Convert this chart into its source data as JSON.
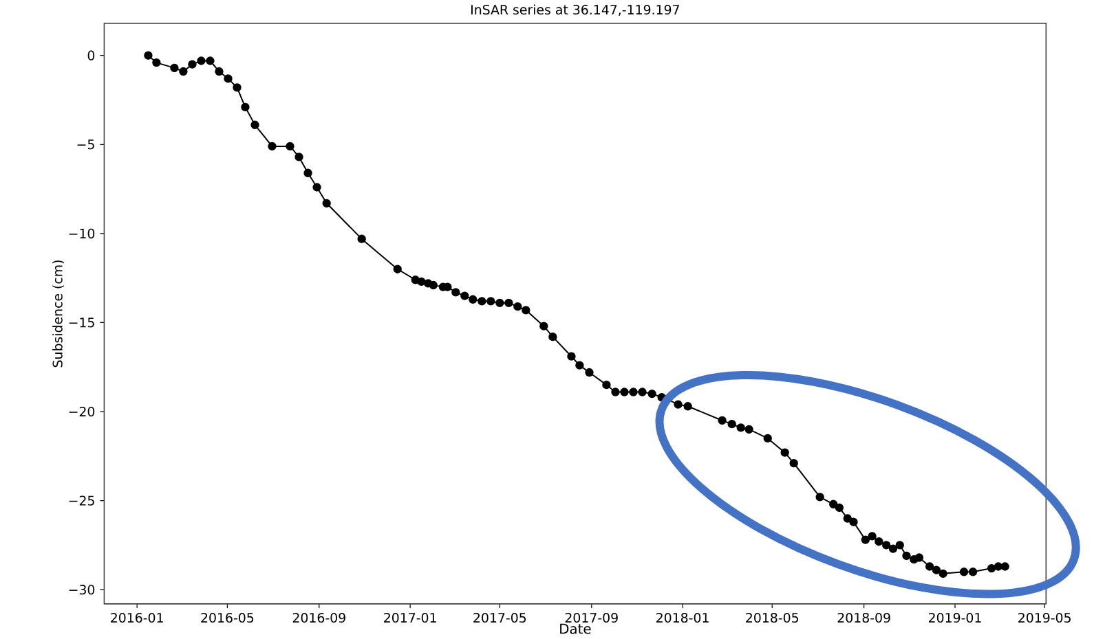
{
  "chart_data": {
    "type": "line",
    "title": "InSAR series at 36.147,-119.197",
    "xlabel": "Date",
    "ylabel": "Subsidence (cm)",
    "marker": "circle",
    "line_style": "solid",
    "grid": false,
    "xlim": [
      "2015-11-18",
      "2019-05-03"
    ],
    "xticks": [
      {
        "value": "2016-01-01",
        "label": "2016-01"
      },
      {
        "value": "2016-05-01",
        "label": "2016-05"
      },
      {
        "value": "2016-09-01",
        "label": "2016-09"
      },
      {
        "value": "2017-01-01",
        "label": "2017-01"
      },
      {
        "value": "2017-05-01",
        "label": "2017-05"
      },
      {
        "value": "2017-09-01",
        "label": "2017-09"
      },
      {
        "value": "2018-01-01",
        "label": "2018-01"
      },
      {
        "value": "2018-05-01",
        "label": "2018-05"
      },
      {
        "value": "2018-09-01",
        "label": "2018-09"
      },
      {
        "value": "2019-01-01",
        "label": "2019-01"
      },
      {
        "value": "2019-05-01",
        "label": "2019-05"
      }
    ],
    "ylim": [
      -30.8,
      1.8
    ],
    "yticks": [
      {
        "value": 0,
        "label": "0"
      },
      {
        "value": -5,
        "label": "−5"
      },
      {
        "value": -10,
        "label": "−10"
      },
      {
        "value": -15,
        "label": "−15"
      },
      {
        "value": -20,
        "label": "−20"
      },
      {
        "value": -25,
        "label": "−25"
      },
      {
        "value": -30,
        "label": "−30"
      }
    ],
    "series": [
      {
        "color": "#000000",
        "x": [
          "2016-01-16",
          "2016-01-27",
          "2016-02-20",
          "2016-03-03",
          "2016-03-15",
          "2016-03-27",
          "2016-04-08",
          "2016-04-20",
          "2016-05-02",
          "2016-05-14",
          "2016-05-25",
          "2016-06-07",
          "2016-06-30",
          "2016-07-24",
          "2016-08-05",
          "2016-08-17",
          "2016-08-29",
          "2016-09-11",
          "2016-10-28",
          "2016-12-15",
          "2017-01-08",
          "2017-01-16",
          "2017-01-25",
          "2017-02-01",
          "2017-02-14",
          "2017-02-20",
          "2017-03-03",
          "2017-03-15",
          "2017-03-26",
          "2017-04-07",
          "2017-04-19",
          "2017-05-01",
          "2017-05-13",
          "2017-05-25",
          "2017-06-05",
          "2017-06-29",
          "2017-07-11",
          "2017-08-05",
          "2017-08-16",
          "2017-08-29",
          "2017-09-21",
          "2017-10-03",
          "2017-10-15",
          "2017-10-27",
          "2017-11-08",
          "2017-11-21",
          "2017-12-04",
          "2017-12-11",
          "2017-12-26",
          "2018-01-08",
          "2018-02-23",
          "2018-03-08",
          "2018-03-20",
          "2018-03-31",
          "2018-04-25",
          "2018-05-18",
          "2018-05-30",
          "2018-07-04",
          "2018-07-22",
          "2018-07-30",
          "2018-08-10",
          "2018-08-18",
          "2018-09-03",
          "2018-09-12",
          "2018-09-21",
          "2018-10-01",
          "2018-10-10",
          "2018-10-19",
          "2018-10-28",
          "2018-11-07",
          "2018-11-14",
          "2018-11-28",
          "2018-12-07",
          "2018-12-16",
          "2019-01-13",
          "2019-01-25",
          "2019-02-19",
          "2019-02-28",
          "2019-03-09"
        ],
        "values": [
          0.0,
          -0.4,
          -0.7,
          -0.9,
          -0.5,
          -0.3,
          -0.3,
          -0.9,
          -1.3,
          -1.8,
          -2.9,
          -3.9,
          -5.1,
          -5.1,
          -5.7,
          -6.6,
          -7.4,
          -8.3,
          -10.3,
          -12.0,
          -12.6,
          -12.7,
          -12.8,
          -12.9,
          -13.0,
          -13.0,
          -13.3,
          -13.5,
          -13.7,
          -13.8,
          -13.8,
          -13.9,
          -13.9,
          -14.1,
          -14.3,
          -15.2,
          -15.8,
          -16.9,
          -17.4,
          -17.8,
          -18.5,
          -18.9,
          -18.9,
          -18.9,
          -18.9,
          -19.0,
          -19.2,
          -19.3,
          -19.6,
          -19.7,
          -20.5,
          -20.7,
          -20.9,
          -21.0,
          -21.5,
          -22.3,
          -22.9,
          -24.8,
          -25.2,
          -25.4,
          -26.0,
          -26.2,
          -27.2,
          -27.0,
          -27.3,
          -27.5,
          -27.7,
          -27.5,
          -28.1,
          -28.3,
          -28.2,
          -28.7,
          -28.9,
          -29.1,
          -29.0,
          -29.0,
          -28.8,
          -28.7,
          -28.7
        ]
      }
    ]
  }
}
